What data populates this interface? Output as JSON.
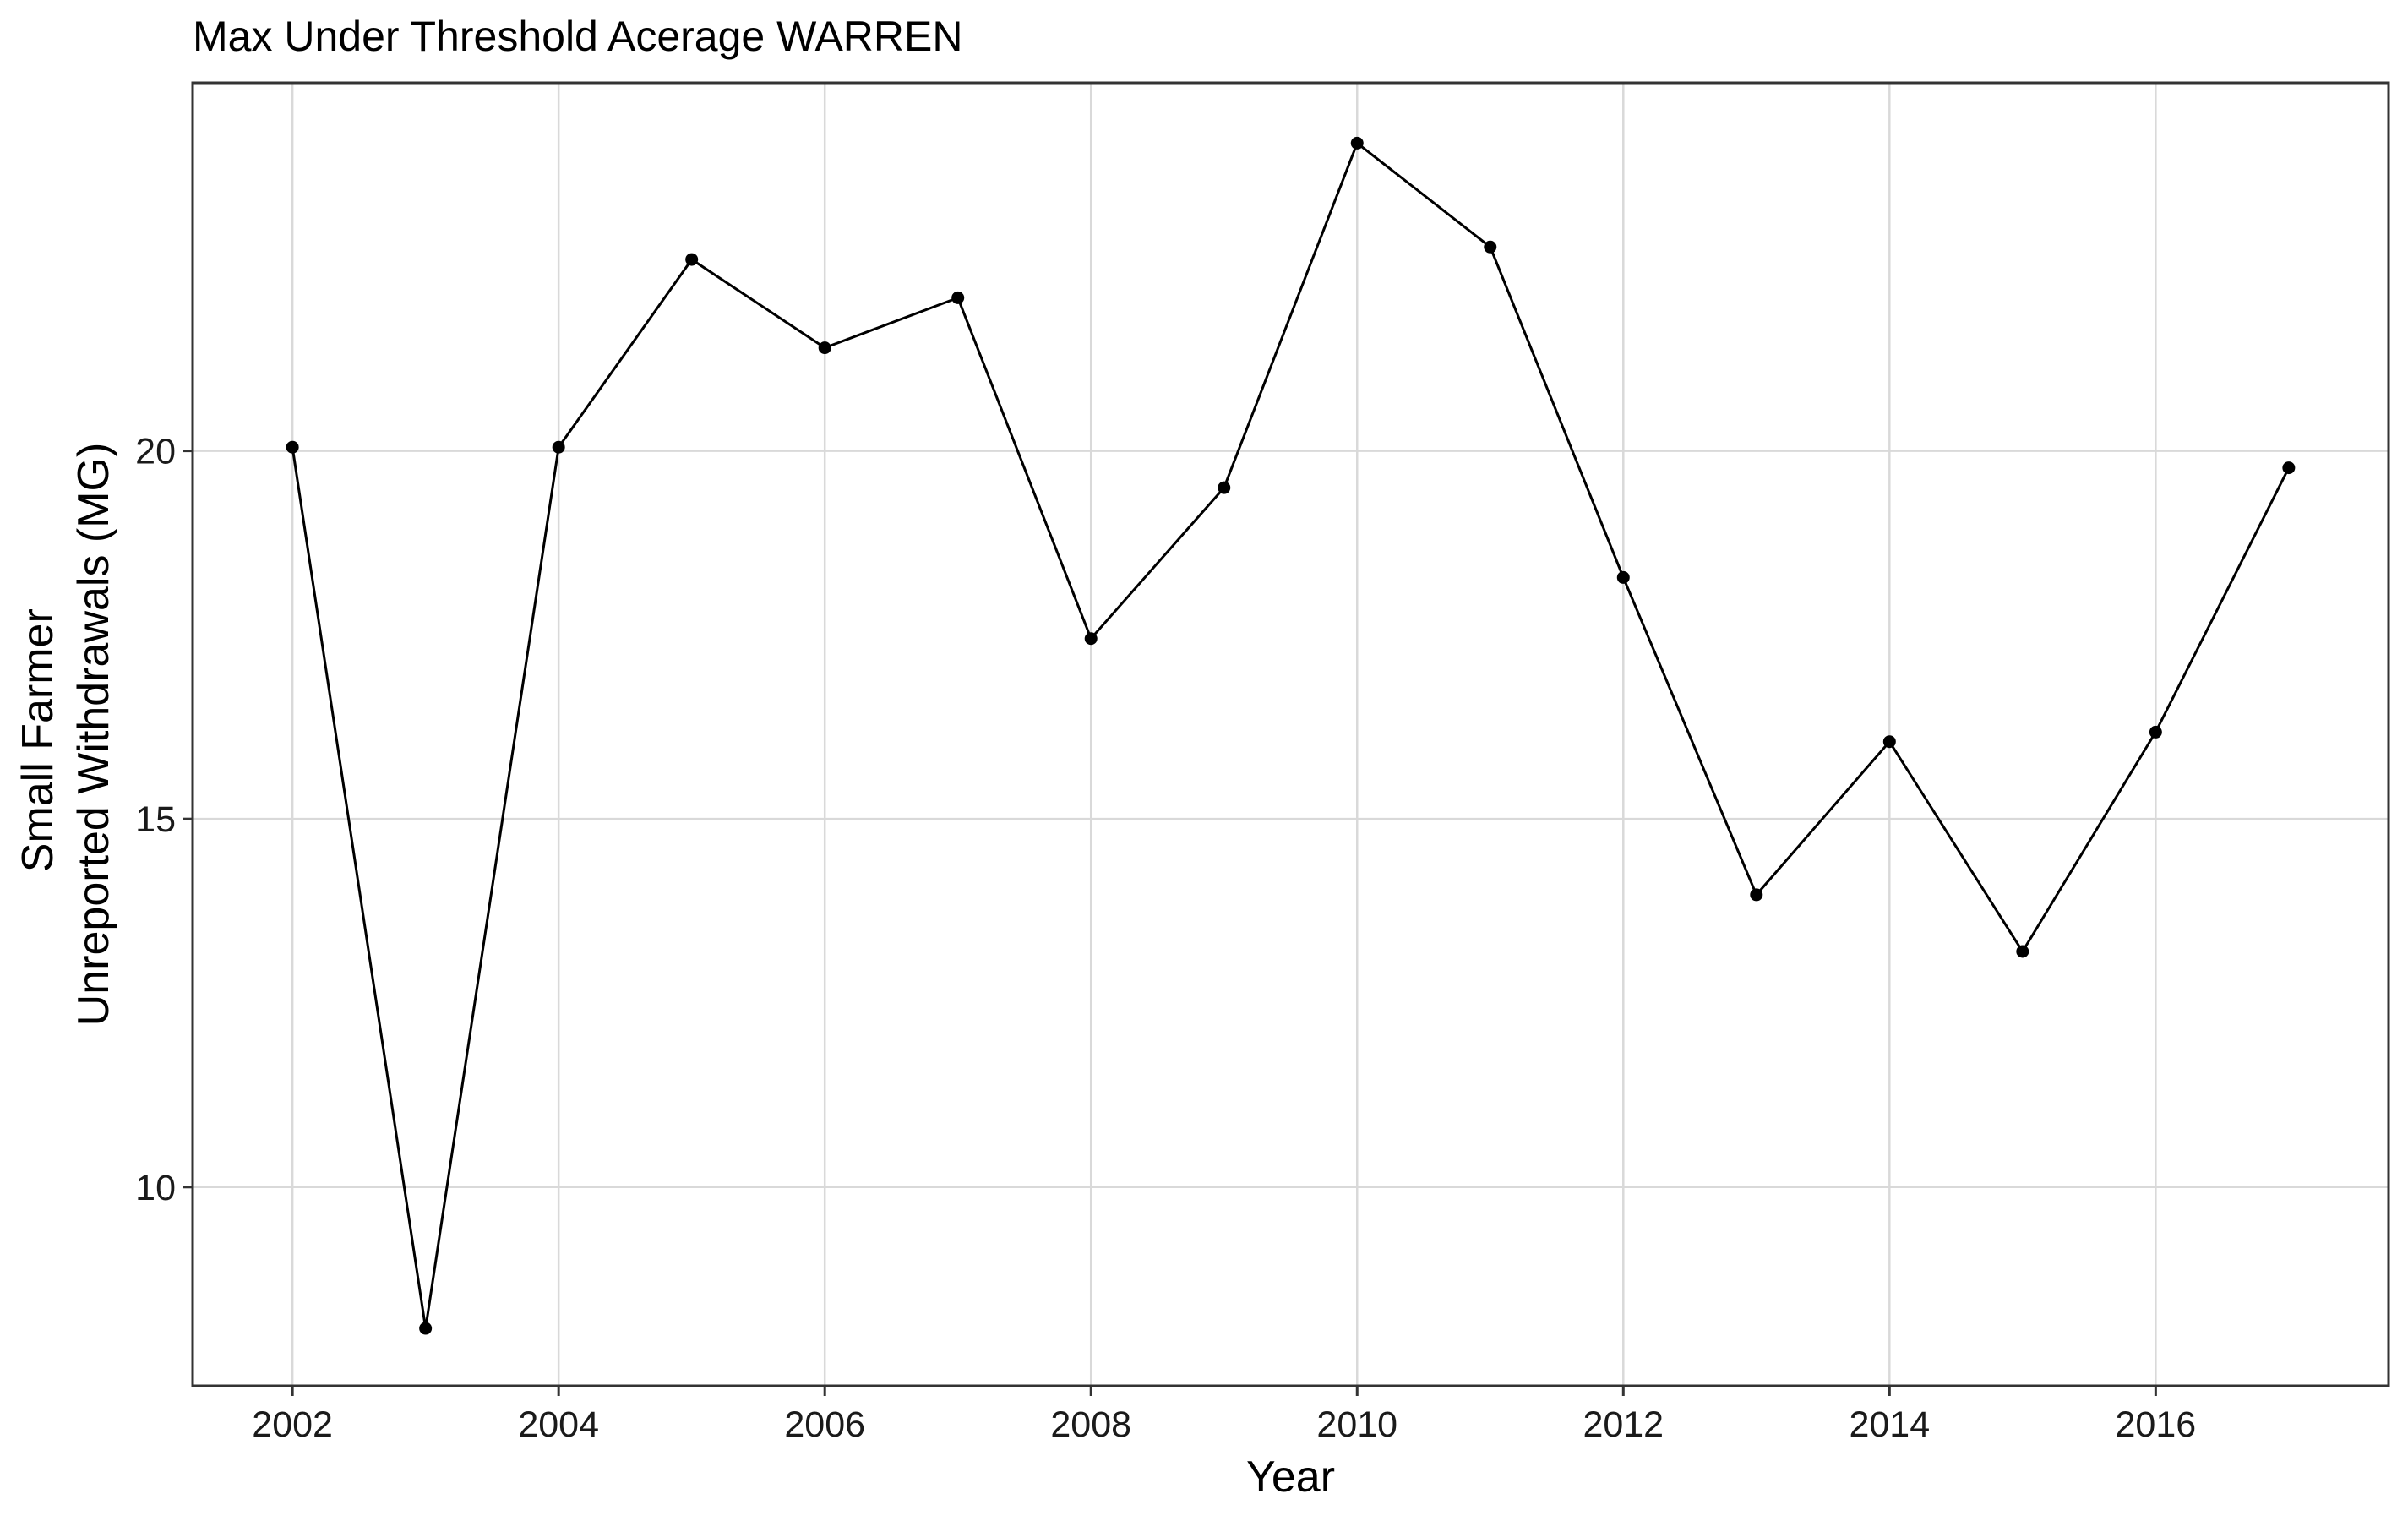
{
  "chart_data": {
    "type": "line",
    "title": "Max Under Threshold Acerage WARREN",
    "xlabel": "Year",
    "ylabel_lines": [
      "Small Farmer",
      "Unreported Withdrawals (MG)"
    ],
    "x_ticks": [
      2002,
      2004,
      2006,
      2008,
      2010,
      2012,
      2014,
      2016
    ],
    "x_tick_labels": [
      "2002",
      "2004",
      "2006",
      "2008",
      "2010",
      "2012",
      "2014",
      "2016"
    ],
    "y_ticks": [
      10,
      15,
      20
    ],
    "y_tick_labels": [
      "10",
      "15",
      "20"
    ],
    "xlim": [
      2001.25,
      2017.75
    ],
    "ylim": [
      7.3,
      25.0
    ],
    "grid": true,
    "legend": "none",
    "series": [
      {
        "x": [
          2002,
          2003,
          2004,
          2005,
          2006,
          2007,
          2008,
          2009,
          2010,
          2011,
          2012,
          2013,
          2014,
          2015,
          2016,
          2017
        ],
        "values": [
          20.05,
          8.08,
          20.05,
          22.6,
          21.4,
          22.08,
          17.45,
          19.5,
          24.18,
          22.77,
          18.28,
          13.97,
          16.05,
          13.2,
          16.18,
          19.77
        ]
      }
    ]
  }
}
